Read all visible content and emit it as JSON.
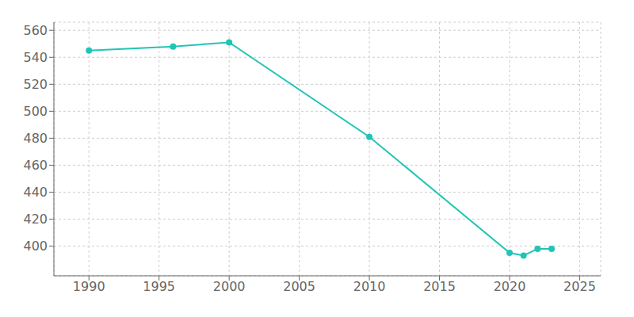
{
  "chart_data": {
    "type": "line",
    "x": [
      1990,
      1996,
      2000,
      2010,
      2020,
      2021,
      2022,
      2023
    ],
    "values": [
      545,
      548,
      551,
      481,
      395,
      393,
      398,
      398
    ],
    "color": "#20C5B5",
    "marker": "circle",
    "xlim": [
      1987.5,
      2026.5
    ],
    "ylim": [
      378,
      566
    ],
    "xticks": [
      1990,
      1995,
      2000,
      2005,
      2010,
      2015,
      2020,
      2025
    ],
    "yticks": [
      400,
      420,
      440,
      460,
      480,
      500,
      520,
      540,
      560
    ],
    "grid": true
  }
}
